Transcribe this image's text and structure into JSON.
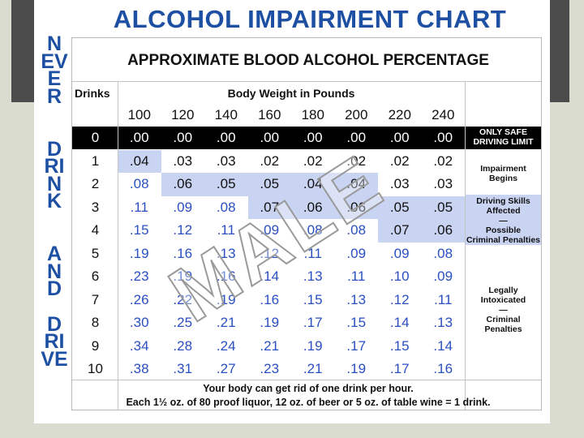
{
  "title": "ALCOHOL IMPAIRMENT CHART",
  "side_words": [
    "NEVER",
    "DRINK",
    "AND",
    "DRIVE"
  ],
  "subtitle": "APPROXIMATE BLOOD ALCOHOL PERCENTAGE",
  "table": {
    "drinks_header": "Drinks",
    "weight_header": "Body Weight in Pounds",
    "weights": [
      "100",
      "120",
      "140",
      "160",
      "180",
      "200",
      "220",
      "240"
    ],
    "rows": [
      {
        "drinks": "0",
        "values": [
          ".00",
          ".00",
          ".00",
          ".00",
          ".00",
          ".00",
          ".00",
          ".00"
        ]
      },
      {
        "drinks": "1",
        "values": [
          ".04",
          ".03",
          ".03",
          ".02",
          ".02",
          ".02",
          ".02",
          ".02"
        ]
      },
      {
        "drinks": "2",
        "values": [
          ".08",
          ".06",
          ".05",
          ".05",
          ".04",
          ".04",
          ".03",
          ".03"
        ]
      },
      {
        "drinks": "3",
        "values": [
          ".11",
          ".09",
          ".08",
          ".07",
          ".06",
          ".06",
          ".05",
          ".05"
        ]
      },
      {
        "drinks": "4",
        "values": [
          ".15",
          ".12",
          ".11",
          ".09",
          ".08",
          ".08",
          ".07",
          ".06"
        ]
      },
      {
        "drinks": "5",
        "values": [
          ".19",
          ".16",
          ".13",
          ".12",
          ".11",
          ".09",
          ".09",
          ".08"
        ]
      },
      {
        "drinks": "6",
        "values": [
          ".23",
          ".19",
          ".16",
          ".14",
          ".13",
          ".11",
          ".10",
          ".09"
        ]
      },
      {
        "drinks": "7",
        "values": [
          ".26",
          ".22",
          ".19",
          ".16",
          ".15",
          ".13",
          ".12",
          ".11"
        ]
      },
      {
        "drinks": "8",
        "values": [
          ".30",
          ".25",
          ".21",
          ".19",
          ".17",
          ".15",
          ".14",
          ".13"
        ]
      },
      {
        "drinks": "9",
        "values": [
          ".34",
          ".28",
          ".24",
          ".21",
          ".19",
          ".17",
          ".15",
          ".14"
        ]
      },
      {
        "drinks": "10",
        "values": [
          ".38",
          ".31",
          ".27",
          ".23",
          ".21",
          ".19",
          ".17",
          ".16"
        ]
      }
    ]
  },
  "notes": [
    [
      "ONLY SAFE",
      "DRIVING LIMIT"
    ],
    [
      "Impairment",
      "Begins"
    ],
    [
      "Driving Skills",
      "Affected",
      "—",
      "Possible",
      "Criminal Penalties"
    ],
    [
      "Legally",
      "Intoxicated",
      "—",
      "Criminal",
      "Penalties"
    ]
  ],
  "watermark": "MALE",
  "footer": [
    "Your body can get rid of one drink per hour.",
    "Each 1½ oz. of 80 proof liquor, 12 oz. of beer or 5 oz. of table wine = 1 drink."
  ]
}
